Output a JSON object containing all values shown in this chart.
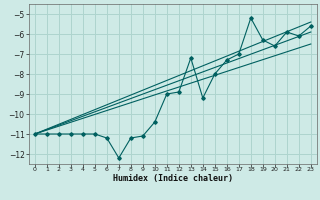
{
  "xlabel": "Humidex (Indice chaleur)",
  "ylabel": "",
  "background_color": "#ceeae6",
  "grid_color": "#aed4ce",
  "line_color": "#006060",
  "xlim": [
    -0.5,
    23.5
  ],
  "ylim": [
    -12.5,
    -4.5
  ],
  "yticks": [
    -12,
    -11,
    -10,
    -9,
    -8,
    -7,
    -6,
    -5
  ],
  "xticks": [
    0,
    1,
    2,
    3,
    4,
    5,
    6,
    7,
    8,
    9,
    10,
    11,
    12,
    13,
    14,
    15,
    16,
    17,
    18,
    19,
    20,
    21,
    22,
    23
  ],
  "series1_x": [
    0,
    1,
    2,
    3,
    4,
    5,
    6,
    7,
    8,
    9,
    10,
    11,
    12,
    13,
    14,
    15,
    16,
    17,
    18,
    19,
    20,
    21,
    22,
    23
  ],
  "series1_y": [
    -11.0,
    -11.0,
    -11.0,
    -11.0,
    -11.0,
    -11.0,
    -11.2,
    -12.2,
    -11.2,
    -11.1,
    -10.4,
    -9.0,
    -8.9,
    -7.2,
    -9.2,
    -8.0,
    -7.3,
    -7.0,
    -5.2,
    -6.3,
    -6.6,
    -5.9,
    -6.1,
    -5.6
  ],
  "series2_x": [
    0,
    23
  ],
  "series2_y": [
    -11.0,
    -5.4
  ],
  "series3_x": [
    0,
    23
  ],
  "series3_y": [
    -11.0,
    -5.9
  ],
  "series4_x": [
    0,
    23
  ],
  "series4_y": [
    -11.0,
    -6.5
  ]
}
